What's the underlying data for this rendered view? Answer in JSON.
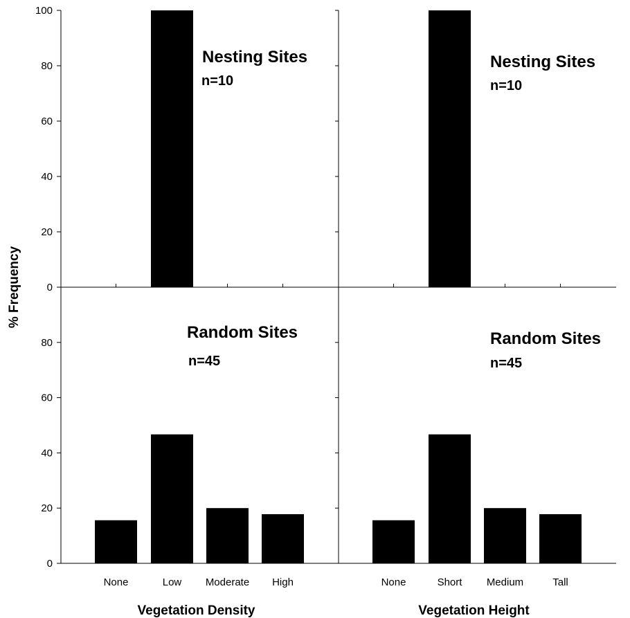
{
  "chart_data": {
    "type": "bar",
    "ylabel": "% Frequency",
    "ylim": [
      0,
      100
    ],
    "yticks": [
      0,
      20,
      40,
      60,
      80,
      100
    ],
    "grid": false,
    "panels": [
      {
        "id": "nesting-density",
        "title": "Nesting Sites",
        "n_label": "n=10",
        "categories": [
          "None",
          "Low",
          "Moderate",
          "High"
        ],
        "values": [
          0,
          100,
          0,
          0
        ],
        "xlabel": ""
      },
      {
        "id": "nesting-height",
        "title": "Nesting Sites",
        "n_label": "n=10",
        "categories": [
          "None",
          "Short",
          "Medium",
          "Tall"
        ],
        "values": [
          0,
          100,
          0,
          0
        ],
        "xlabel": ""
      },
      {
        "id": "random-density",
        "title": "Random Sites",
        "n_label": "n=45",
        "categories": [
          "None",
          "Low",
          "Moderate",
          "High"
        ],
        "values": [
          15.6,
          46.7,
          20,
          17.8
        ],
        "xlabel": "Vegetation Density"
      },
      {
        "id": "random-height",
        "title": "Random Sites",
        "n_label": "n=45",
        "categories": [
          "None",
          "Short",
          "Medium",
          "Tall"
        ],
        "values": [
          15.6,
          46.7,
          20,
          17.8
        ],
        "xlabel": "Vegetation Height"
      }
    ],
    "colors": {
      "bar": "#000000",
      "axis": "#000000"
    }
  }
}
